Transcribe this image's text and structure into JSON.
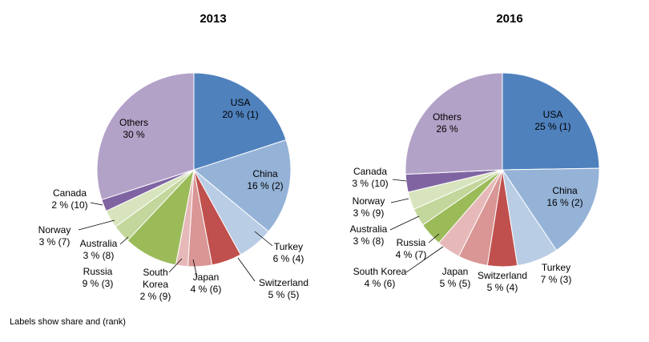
{
  "chart_data": [
    {
      "type": "pie",
      "title": "2013",
      "colors": {
        "USA": "#4f81bd",
        "China": "#95b3d7",
        "Turkey": "#b9cde5",
        "Switzerland": "#c0504d",
        "Japan": "#d99694",
        "South Korea": "#e6b9b8",
        "Russia": "#9bbb59",
        "Australia": "#c3d69b",
        "Norway": "#d7e4bd",
        "Canada": "#8064a2",
        "Others": "#b3a2c7"
      },
      "slices": [
        {
          "name": "USA",
          "value": 20,
          "label": [
            "USA",
            "20 % (1)"
          ]
        },
        {
          "name": "China",
          "value": 16,
          "label": [
            "China",
            "16 % (2)"
          ]
        },
        {
          "name": "Turkey",
          "value": 6,
          "label": [
            "Turkey",
            "6 % (4)"
          ]
        },
        {
          "name": "Switzerland",
          "value": 5,
          "label": [
            "Switzerland",
            "5 % (5)"
          ]
        },
        {
          "name": "Japan",
          "value": 4,
          "label": [
            "Japan",
            "4 % (6)"
          ]
        },
        {
          "name": "South Korea",
          "value": 2,
          "label": [
            "South",
            "Korea",
            "2 % (9)"
          ]
        },
        {
          "name": "Russia",
          "value": 9,
          "label": [
            "Russia",
            "9 % (3)"
          ]
        },
        {
          "name": "Australia",
          "value": 3,
          "label": [
            "Australia",
            "3 % (8)"
          ]
        },
        {
          "name": "Norway",
          "value": 3,
          "label": [
            "Norway",
            "3 % (7)"
          ]
        },
        {
          "name": "Canada",
          "value": 2,
          "label": [
            "Canada",
            "2 % (10)"
          ]
        },
        {
          "name": "Others",
          "value": 30,
          "label": [
            "Others",
            "30 %"
          ]
        }
      ]
    },
    {
      "type": "pie",
      "title": "2016",
      "slices": [
        {
          "name": "USA",
          "value": 25,
          "label": [
            "USA",
            "25 % (1)"
          ]
        },
        {
          "name": "China",
          "value": 16,
          "label": [
            "China",
            "16 % (2)"
          ]
        },
        {
          "name": "Turkey",
          "value": 7,
          "label": [
            "Turkey",
            "7 % (3)"
          ]
        },
        {
          "name": "Switzerland",
          "value": 5,
          "label": [
            "Switzerland",
            "5 % (4)"
          ]
        },
        {
          "name": "Japan",
          "value": 5,
          "label": [
            "Japan",
            "5 % (5)"
          ]
        },
        {
          "name": "South Korea",
          "value": 4,
          "label": [
            "South Korea",
            "4 % (6)"
          ]
        },
        {
          "name": "Russia",
          "value": 4,
          "label": [
            "Russia",
            "4 % (7)"
          ]
        },
        {
          "name": "Australia",
          "value": 3,
          "label": [
            "Australia",
            "3 % (8)"
          ]
        },
        {
          "name": "Norway",
          "value": 3,
          "label": [
            "Norway",
            "3 % (9)"
          ]
        },
        {
          "name": "Canada",
          "value": 3,
          "label": [
            "Canada",
            "3 % (10)"
          ]
        },
        {
          "name": "Others",
          "value": 26,
          "label": [
            "Others",
            "26 %"
          ]
        }
      ]
    }
  ],
  "footnote": "Labels show share and (rank)"
}
